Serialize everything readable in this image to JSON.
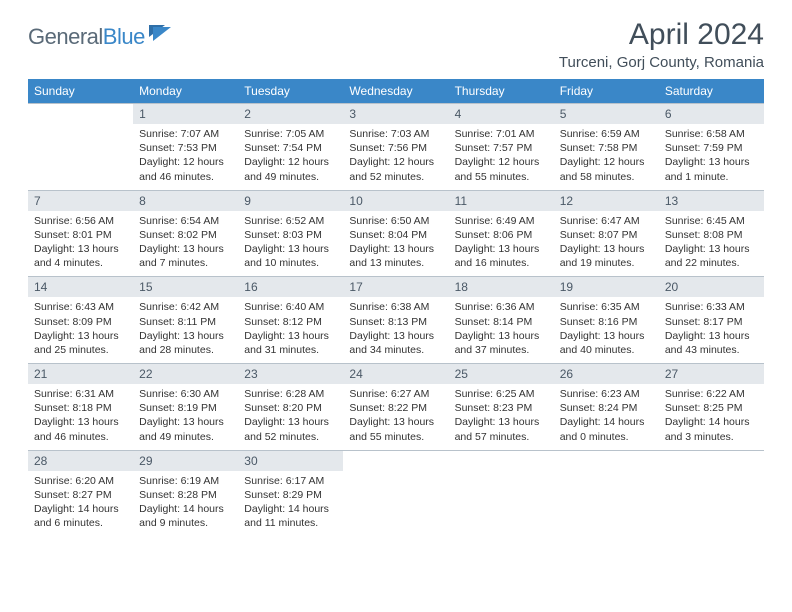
{
  "logo": {
    "part1": "General",
    "part2": "Blue"
  },
  "title": "April 2024",
  "location": "Turceni, Gorj County, Romania",
  "colors": {
    "header_bg": "#3a87c8",
    "header_text": "#ffffff",
    "daynum_bg": "#e4e8ec",
    "daynum_text": "#4a5866",
    "page_bg": "#ffffff",
    "body_text": "#333333",
    "title_text": "#414e5a",
    "border": "#b8c2cb"
  },
  "weekdays": [
    "Sunday",
    "Monday",
    "Tuesday",
    "Wednesday",
    "Thursday",
    "Friday",
    "Saturday"
  ],
  "weeks": [
    [
      {
        "day": "",
        "sunrise": "",
        "sunset": "",
        "daylight": ""
      },
      {
        "day": "1",
        "sunrise": "Sunrise: 7:07 AM",
        "sunset": "Sunset: 7:53 PM",
        "daylight": "Daylight: 12 hours and 46 minutes."
      },
      {
        "day": "2",
        "sunrise": "Sunrise: 7:05 AM",
        "sunset": "Sunset: 7:54 PM",
        "daylight": "Daylight: 12 hours and 49 minutes."
      },
      {
        "day": "3",
        "sunrise": "Sunrise: 7:03 AM",
        "sunset": "Sunset: 7:56 PM",
        "daylight": "Daylight: 12 hours and 52 minutes."
      },
      {
        "day": "4",
        "sunrise": "Sunrise: 7:01 AM",
        "sunset": "Sunset: 7:57 PM",
        "daylight": "Daylight: 12 hours and 55 minutes."
      },
      {
        "day": "5",
        "sunrise": "Sunrise: 6:59 AM",
        "sunset": "Sunset: 7:58 PM",
        "daylight": "Daylight: 12 hours and 58 minutes."
      },
      {
        "day": "6",
        "sunrise": "Sunrise: 6:58 AM",
        "sunset": "Sunset: 7:59 PM",
        "daylight": "Daylight: 13 hours and 1 minute."
      }
    ],
    [
      {
        "day": "7",
        "sunrise": "Sunrise: 6:56 AM",
        "sunset": "Sunset: 8:01 PM",
        "daylight": "Daylight: 13 hours and 4 minutes."
      },
      {
        "day": "8",
        "sunrise": "Sunrise: 6:54 AM",
        "sunset": "Sunset: 8:02 PM",
        "daylight": "Daylight: 13 hours and 7 minutes."
      },
      {
        "day": "9",
        "sunrise": "Sunrise: 6:52 AM",
        "sunset": "Sunset: 8:03 PM",
        "daylight": "Daylight: 13 hours and 10 minutes."
      },
      {
        "day": "10",
        "sunrise": "Sunrise: 6:50 AM",
        "sunset": "Sunset: 8:04 PM",
        "daylight": "Daylight: 13 hours and 13 minutes."
      },
      {
        "day": "11",
        "sunrise": "Sunrise: 6:49 AM",
        "sunset": "Sunset: 8:06 PM",
        "daylight": "Daylight: 13 hours and 16 minutes."
      },
      {
        "day": "12",
        "sunrise": "Sunrise: 6:47 AM",
        "sunset": "Sunset: 8:07 PM",
        "daylight": "Daylight: 13 hours and 19 minutes."
      },
      {
        "day": "13",
        "sunrise": "Sunrise: 6:45 AM",
        "sunset": "Sunset: 8:08 PM",
        "daylight": "Daylight: 13 hours and 22 minutes."
      }
    ],
    [
      {
        "day": "14",
        "sunrise": "Sunrise: 6:43 AM",
        "sunset": "Sunset: 8:09 PM",
        "daylight": "Daylight: 13 hours and 25 minutes."
      },
      {
        "day": "15",
        "sunrise": "Sunrise: 6:42 AM",
        "sunset": "Sunset: 8:11 PM",
        "daylight": "Daylight: 13 hours and 28 minutes."
      },
      {
        "day": "16",
        "sunrise": "Sunrise: 6:40 AM",
        "sunset": "Sunset: 8:12 PM",
        "daylight": "Daylight: 13 hours and 31 minutes."
      },
      {
        "day": "17",
        "sunrise": "Sunrise: 6:38 AM",
        "sunset": "Sunset: 8:13 PM",
        "daylight": "Daylight: 13 hours and 34 minutes."
      },
      {
        "day": "18",
        "sunrise": "Sunrise: 6:36 AM",
        "sunset": "Sunset: 8:14 PM",
        "daylight": "Daylight: 13 hours and 37 minutes."
      },
      {
        "day": "19",
        "sunrise": "Sunrise: 6:35 AM",
        "sunset": "Sunset: 8:16 PM",
        "daylight": "Daylight: 13 hours and 40 minutes."
      },
      {
        "day": "20",
        "sunrise": "Sunrise: 6:33 AM",
        "sunset": "Sunset: 8:17 PM",
        "daylight": "Daylight: 13 hours and 43 minutes."
      }
    ],
    [
      {
        "day": "21",
        "sunrise": "Sunrise: 6:31 AM",
        "sunset": "Sunset: 8:18 PM",
        "daylight": "Daylight: 13 hours and 46 minutes."
      },
      {
        "day": "22",
        "sunrise": "Sunrise: 6:30 AM",
        "sunset": "Sunset: 8:19 PM",
        "daylight": "Daylight: 13 hours and 49 minutes."
      },
      {
        "day": "23",
        "sunrise": "Sunrise: 6:28 AM",
        "sunset": "Sunset: 8:20 PM",
        "daylight": "Daylight: 13 hours and 52 minutes."
      },
      {
        "day": "24",
        "sunrise": "Sunrise: 6:27 AM",
        "sunset": "Sunset: 8:22 PM",
        "daylight": "Daylight: 13 hours and 55 minutes."
      },
      {
        "day": "25",
        "sunrise": "Sunrise: 6:25 AM",
        "sunset": "Sunset: 8:23 PM",
        "daylight": "Daylight: 13 hours and 57 minutes."
      },
      {
        "day": "26",
        "sunrise": "Sunrise: 6:23 AM",
        "sunset": "Sunset: 8:24 PM",
        "daylight": "Daylight: 14 hours and 0 minutes."
      },
      {
        "day": "27",
        "sunrise": "Sunrise: 6:22 AM",
        "sunset": "Sunset: 8:25 PM",
        "daylight": "Daylight: 14 hours and 3 minutes."
      }
    ],
    [
      {
        "day": "28",
        "sunrise": "Sunrise: 6:20 AM",
        "sunset": "Sunset: 8:27 PM",
        "daylight": "Daylight: 14 hours and 6 minutes."
      },
      {
        "day": "29",
        "sunrise": "Sunrise: 6:19 AM",
        "sunset": "Sunset: 8:28 PM",
        "daylight": "Daylight: 14 hours and 9 minutes."
      },
      {
        "day": "30",
        "sunrise": "Sunrise: 6:17 AM",
        "sunset": "Sunset: 8:29 PM",
        "daylight": "Daylight: 14 hours and 11 minutes."
      },
      {
        "day": "",
        "sunrise": "",
        "sunset": "",
        "daylight": ""
      },
      {
        "day": "",
        "sunrise": "",
        "sunset": "",
        "daylight": ""
      },
      {
        "day": "",
        "sunrise": "",
        "sunset": "",
        "daylight": ""
      },
      {
        "day": "",
        "sunrise": "",
        "sunset": "",
        "daylight": ""
      }
    ]
  ]
}
